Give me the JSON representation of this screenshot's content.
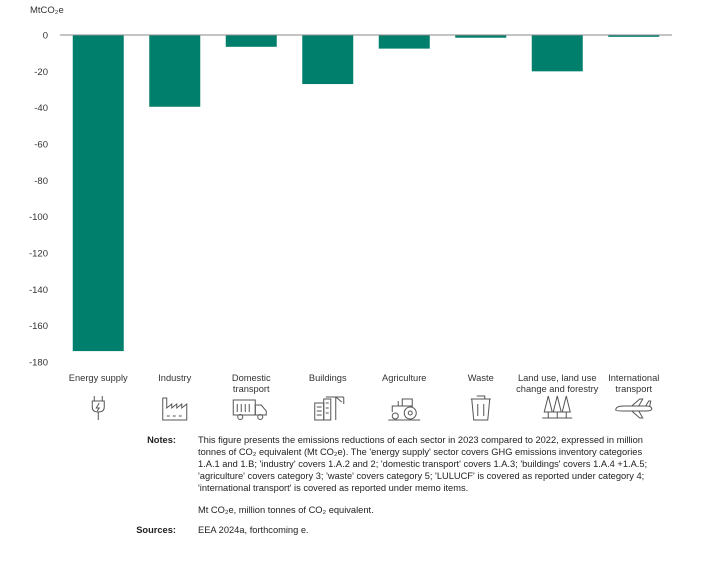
{
  "chart_data": {
    "type": "bar",
    "unit_label": "MtCO₂e",
    "categories": [
      "Energy supply",
      "Industry",
      "Domestic transport",
      "Buildings",
      "Agriculture",
      "Waste",
      "Land use, land use change and forestry",
      "International transport"
    ],
    "category_lines": [
      [
        "Energy supply"
      ],
      [
        "Industry"
      ],
      [
        "Domestic",
        "transport"
      ],
      [
        "Buildings"
      ],
      [
        "Agriculture"
      ],
      [
        "Waste"
      ],
      [
        "Land use, land use",
        "change and forestry"
      ],
      [
        "International",
        "transport"
      ]
    ],
    "icons": [
      "plug-icon",
      "factory-icon",
      "truck-icon",
      "building-crane-icon",
      "tractor-icon",
      "waste-bin-icon",
      "trees-icon",
      "airplane-icon"
    ],
    "values": [
      -174,
      -39.5,
      -6.5,
      -27,
      -7.5,
      -1.5,
      -20,
      -1
    ],
    "yticks": [
      0,
      -20,
      -40,
      -60,
      -80,
      -100,
      -120,
      -140,
      -160,
      -180
    ],
    "ylim": [
      -180,
      0
    ],
    "bar_color": "#00806c",
    "grid": false
  },
  "notes": {
    "label": "Notes:",
    "paragraph1": "This figure presents the emissions reductions of each sector in 2023 compared to 2022, expressed in million tonnes of CO₂ equivalent (Mt CO₂e). The 'energy supply' sector covers GHG emissions inventory categories 1.A.1 and 1.B; 'industry' covers 1.A.2 and 2; 'domestic transport' covers 1.A.3; 'buildings' covers 1.A.4 +1.A.5; 'agriculture' covers category 3; 'waste' covers category 5; 'LULUCF' is covered as reported under category 4; 'international transport' is covered as reported under memo items.",
    "paragraph2": "Mt CO₂e, million tonnes of CO₂ equivalent."
  },
  "sources": {
    "label": "Sources:",
    "text": "EEA 2024a, forthcoming e."
  }
}
